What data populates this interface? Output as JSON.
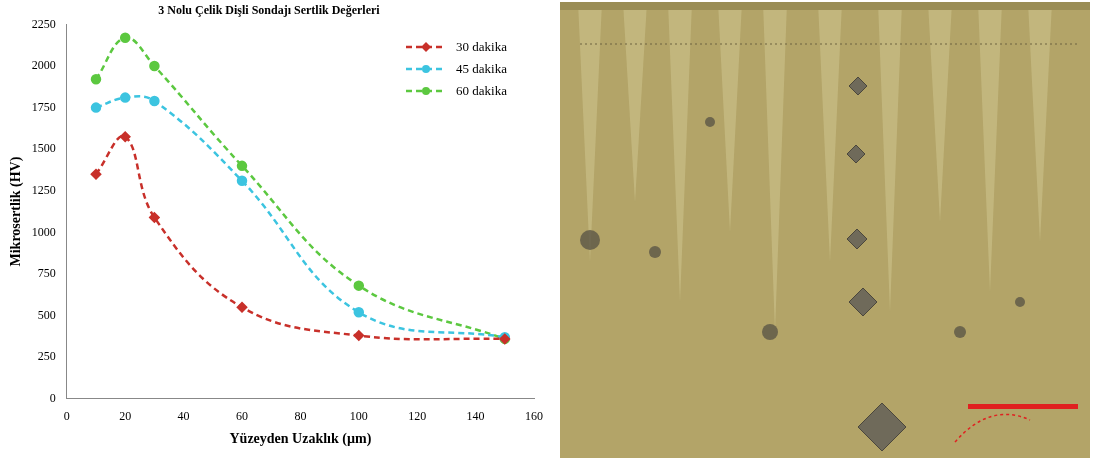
{
  "chart_data": {
    "type": "line",
    "title": "3 Nolu Çelik Dişli Sondajı Sertlik Değerleri",
    "x_label": "Yüzeyden Uzaklık (µm)",
    "y_label": "Mikrosertlik (HV)",
    "x": [
      10,
      20,
      30,
      60,
      100,
      150
    ],
    "series": [
      {
        "name": "30 dakika",
        "color": "#c8302a",
        "marker": "diamond",
        "line_style": "dashed",
        "values": [
          1350,
          1575,
          1090,
          550,
          380,
          360
        ]
      },
      {
        "name": "45 dakika",
        "color": "#3cc4e0",
        "marker": "circle",
        "line_style": "dashed",
        "values": [
          1750,
          1810,
          1790,
          1310,
          520,
          370
        ]
      },
      {
        "name": "60 dakika",
        "color": "#5cc840",
        "marker": "circle",
        "line_style": "dashed",
        "values": [
          1920,
          2170,
          2000,
          1400,
          680,
          360
        ]
      }
    ],
    "xlim": [
      0,
      160
    ],
    "xticks": [
      0,
      20,
      40,
      60,
      80,
      100,
      120,
      140,
      160
    ],
    "ylim": [
      0,
      2250
    ],
    "yticks": [
      0,
      250,
      500,
      750,
      1000,
      1250,
      1500,
      1750,
      2000,
      2250
    ],
    "grid": false,
    "legend": "upper right"
  }
}
